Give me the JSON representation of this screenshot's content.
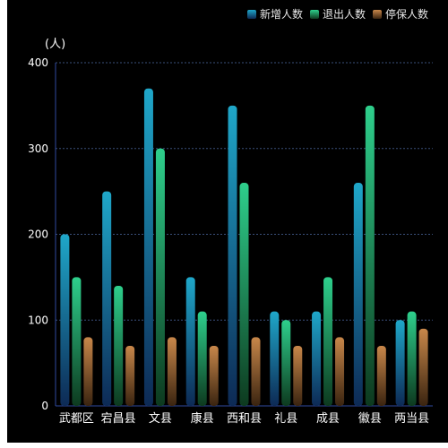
{
  "chart_data": {
    "type": "bar",
    "unit_label": "(人)",
    "categories": [
      "武都区",
      "宕昌县",
      "文县",
      "康县",
      "西和县",
      "礼县",
      "成县",
      "徽县",
      "两当县"
    ],
    "series": [
      {
        "name": "新增人数",
        "values": [
          200,
          250,
          370,
          150,
          350,
          110,
          110,
          260,
          100
        ],
        "color_top": "#1fa7c9",
        "color_bottom": "#0d2a55"
      },
      {
        "name": "退出人数",
        "values": [
          150,
          140,
          300,
          110,
          260,
          100,
          150,
          350,
          110
        ],
        "color_top": "#2ecf8c",
        "color_bottom": "#0d3a1f"
      },
      {
        "name": "停保人数",
        "values": [
          80,
          70,
          80,
          70,
          80,
          70,
          80,
          70,
          90
        ],
        "color_top": "#c8874a",
        "color_bottom": "#3a2410"
      }
    ],
    "yticks": [
      0,
      100,
      200,
      300,
      400
    ],
    "ylim": [
      0,
      400
    ],
    "grid": true,
    "legend_position": "top-right",
    "colors": {
      "background": "#000000",
      "axis": "#2f4aa0",
      "grid": "#3a4f7a",
      "text": "#ffffff"
    }
  }
}
